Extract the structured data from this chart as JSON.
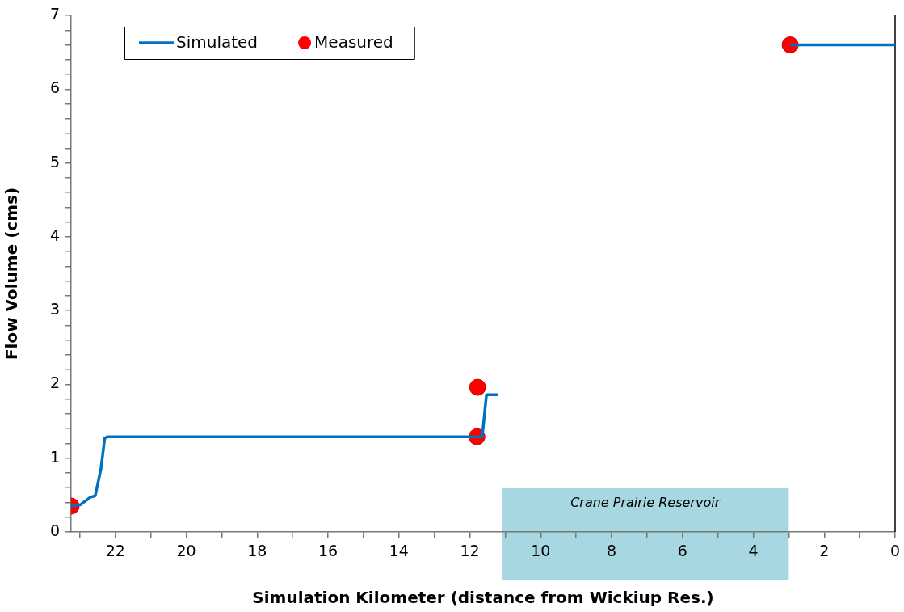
{
  "chart_data": {
    "type": "line",
    "xlabel": "Simulation Kilometer (distance from Wickiup Res.)",
    "ylabel": "Flow Volume (cms)",
    "xlim": [
      23.25,
      0
    ],
    "ylim": [
      0,
      7
    ],
    "xticks": [
      22,
      20,
      18,
      16,
      14,
      12,
      10,
      8,
      6,
      4,
      2,
      0,
      {
        "value": 23,
        "label": null
      },
      {
        "value": 21,
        "label": null
      },
      {
        "value": 19,
        "label": null
      },
      {
        "value": 17,
        "label": null
      },
      {
        "value": 15,
        "label": null
      },
      {
        "value": 13,
        "label": null
      },
      {
        "value": 11,
        "label": null
      },
      {
        "value": 9,
        "label": null
      },
      {
        "value": 7,
        "label": null
      },
      {
        "value": 5,
        "label": null
      },
      {
        "value": 3,
        "label": null
      },
      {
        "value": 1,
        "label": null
      }
    ],
    "yticks": [
      0,
      1,
      2,
      3,
      4,
      5,
      6,
      7,
      {
        "value": 0.2,
        "label": null
      },
      {
        "value": 0.4,
        "label": null
      },
      {
        "value": 0.6,
        "label": null
      },
      {
        "value": 0.8,
        "label": null
      },
      {
        "value": 1.2,
        "label": null
      },
      {
        "value": 1.4,
        "label": null
      },
      {
        "value": 1.6,
        "label": null
      },
      {
        "value": 1.8,
        "label": null
      },
      {
        "value": 2.2,
        "label": null
      },
      {
        "value": 2.4,
        "label": null
      },
      {
        "value": 2.6,
        "label": null
      },
      {
        "value": 2.8,
        "label": null
      },
      {
        "value": 3.2,
        "label": null
      },
      {
        "value": 3.4,
        "label": null
      },
      {
        "value": 3.6,
        "label": null
      },
      {
        "value": 3.8,
        "label": null
      },
      {
        "value": 4.2,
        "label": null
      },
      {
        "value": 4.4,
        "label": null
      },
      {
        "value": 4.6,
        "label": null
      },
      {
        "value": 4.8,
        "label": null
      },
      {
        "value": 5.2,
        "label": null
      },
      {
        "value": 5.4,
        "label": null
      },
      {
        "value": 5.6,
        "label": null
      },
      {
        "value": 5.8,
        "label": null
      },
      {
        "value": 6.2,
        "label": null
      },
      {
        "value": 6.4,
        "label": null
      },
      {
        "value": 6.6,
        "label": null
      },
      {
        "value": 6.8,
        "label": null
      }
    ],
    "grid": false,
    "legend": "top left",
    "bands": [
      {
        "axis": "x",
        "from": 11.1,
        "to": 3,
        "label": "Crane Prairie Reservoir",
        "color": "#9dd3de"
      }
    ],
    "series": [
      {
        "name": "Simulated",
        "color": "#0070c0",
        "marker": "none",
        "x": [
          23.25,
          22.98,
          22.71,
          22.57,
          22.41,
          22.3,
          22.23,
          11.65,
          11.53,
          11.21,
          6,
          2.96,
          0
        ],
        "values": [
          0.35,
          0.37,
          0.47,
          0.49,
          0.85,
          1.27,
          1.29,
          1.29,
          1.86,
          1.86,
          null,
          6.6,
          6.6
        ]
      },
      {
        "name": "Measured",
        "type": "scatter",
        "color": "#ff0000",
        "marker": "circle",
        "x": [
          23.25,
          11.8,
          11.78,
          2.96
        ],
        "values": [
          0.35,
          1.29,
          1.96,
          6.6
        ]
      }
    ]
  }
}
